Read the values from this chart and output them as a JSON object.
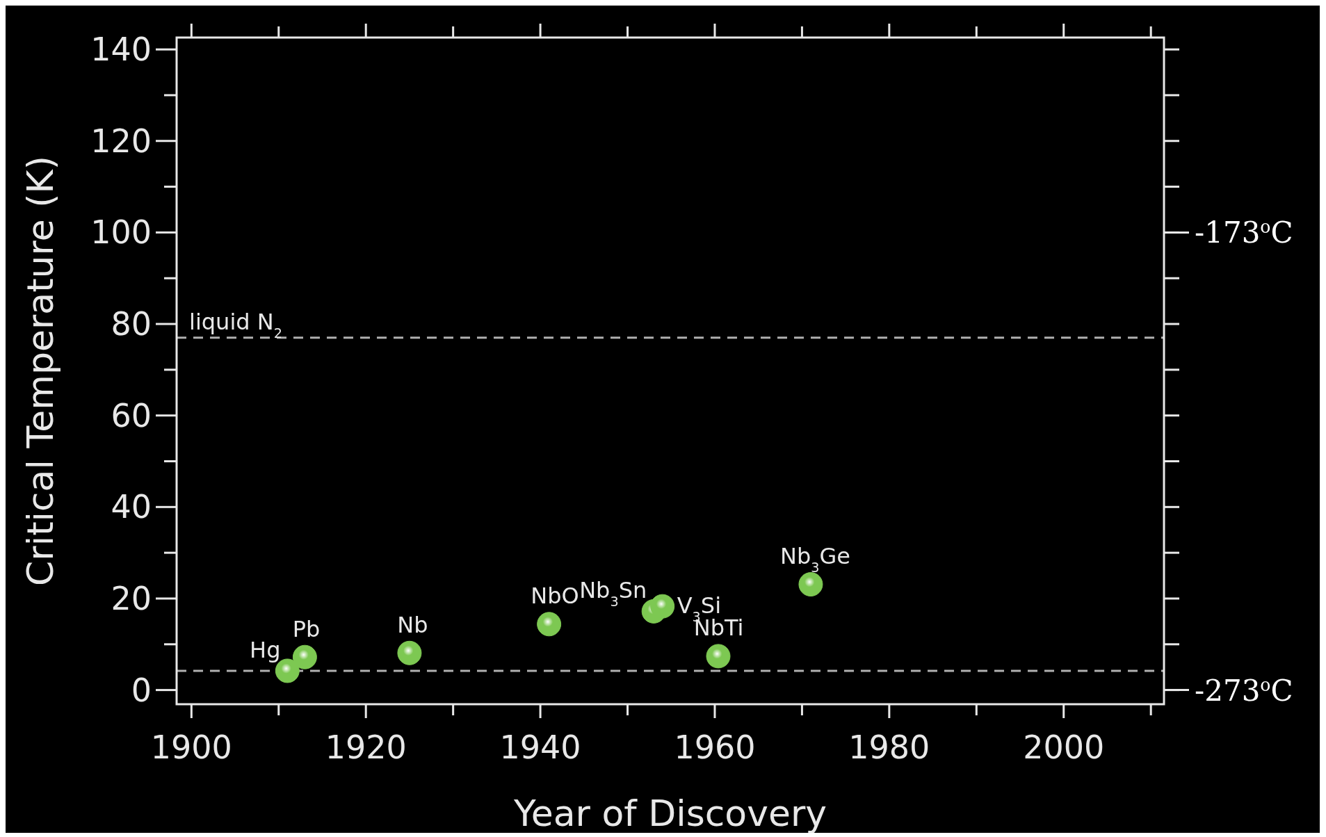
{
  "chart_data": {
    "type": "scatter",
    "xlabel": "Year of Discovery",
    "ylabel": "Critical Temperature (K)",
    "x": [
      1911,
      1913,
      1925,
      1941,
      1953,
      1954,
      1960.4,
      1971
    ],
    "series": [
      {
        "color": "#7dc852",
        "values": [
          4.2,
          7.2,
          8.1,
          14.4,
          17.2,
          18.3,
          7.4,
          23.1
        ]
      }
    ],
    "marker": "circle",
    "grid": false,
    "xlim": [
      1898.3,
      2011.5
    ],
    "xticks": [
      1900,
      1920,
      1940,
      1960,
      1980,
      2000
    ],
    "ylim": [
      -3.1,
      142.6
    ],
    "yticks": [
      0,
      20,
      40,
      60,
      80,
      100,
      120,
      140
    ],
    "y2lim": [
      -276.1,
      -130.4
    ],
    "y2ticks": [
      {
        "value": -273,
        "label": "-273$^{o}$C"
      },
      {
        "value": -173,
        "label": "-173$^{o}$C"
      }
    ],
    "ref_lines": [
      {
        "axis": "y",
        "value": 77,
        "label": "liquid N$_{2}$",
        "color": "#b0b0b0",
        "line_style": "dashed"
      },
      {
        "axis": "y",
        "value": 4.2,
        "label": null,
        "color": "#b0b0b0",
        "line_style": "dashed"
      }
    ],
    "annotations": [
      {
        "text": "Hg",
        "x": 1911,
        "y": 4.2
      },
      {
        "text": "Pb",
        "x": 1913,
        "y": 7.2
      },
      {
        "text": "Nb",
        "x": 1925,
        "y": 8.1
      },
      {
        "text": "NbO",
        "x": 1941,
        "y": 14.4
      },
      {
        "text": "Nb$_{3}$Sn",
        "x": 1953,
        "y": 17.2
      },
      {
        "text": "V$_{3}$Si",
        "x": 1954,
        "y": 18.3
      },
      {
        "text": "NbTi",
        "x": 1960.4,
        "y": 7.4
      },
      {
        "text": "Nb$_{3}$Ge",
        "x": 1971,
        "y": 23.1
      }
    ]
  }
}
